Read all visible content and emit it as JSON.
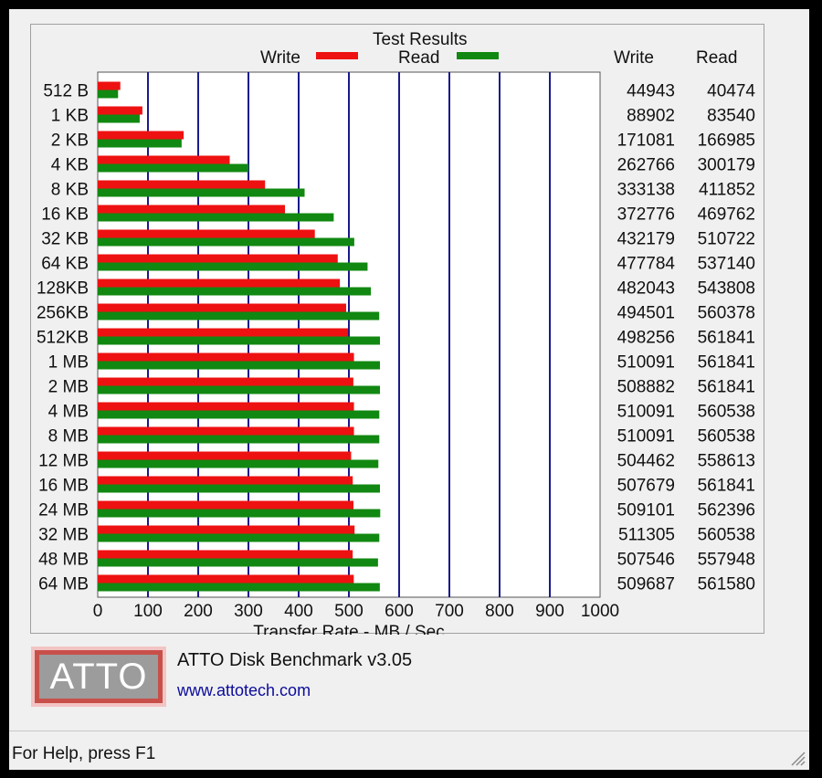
{
  "window": {
    "group_title": "Test Results",
    "app_name": "ATTO Disk Benchmark v3.05",
    "app_url": "www.attotech.com",
    "logo_text": "ATTO",
    "status_text": "For Help, press F1"
  },
  "colors": {
    "write": "#ee1111",
    "read": "#118811",
    "grid": "#1a1a8c"
  },
  "chart_data": {
    "type": "bar",
    "orientation": "horizontal",
    "title": "Test Results",
    "xlabel": "Transfer Rate - MB / Sec",
    "xlim": [
      0,
      1000
    ],
    "xticks": [
      0,
      100,
      200,
      300,
      400,
      500,
      600,
      700,
      800,
      900,
      1000
    ],
    "legend": [
      "Write",
      "Read"
    ],
    "legend_position": "top",
    "table_headers": [
      "Write",
      "Read"
    ],
    "categories": [
      "512 B",
      "1 KB",
      "2 KB",
      "4 KB",
      "8 KB",
      "16 KB",
      "32 KB",
      "64 KB",
      "128KB",
      "256KB",
      "512KB",
      "1 MB",
      "2 MB",
      "4 MB",
      "8 MB",
      "12 MB",
      "16 MB",
      "24 MB",
      "32 MB",
      "48 MB",
      "64 MB"
    ],
    "series": [
      {
        "name": "Write",
        "values": [
          44943,
          88902,
          171081,
          262766,
          333138,
          372776,
          432179,
          477784,
          482043,
          494501,
          498256,
          510091,
          508882,
          510091,
          510091,
          504462,
          507679,
          509101,
          511305,
          507546,
          509687
        ]
      },
      {
        "name": "Read",
        "values": [
          40474,
          83540,
          166985,
          300179,
          411852,
          469762,
          510722,
          537140,
          543808,
          560378,
          561841,
          561841,
          561841,
          560538,
          560538,
          558613,
          561841,
          562396,
          560538,
          557948,
          561580
        ]
      }
    ]
  }
}
